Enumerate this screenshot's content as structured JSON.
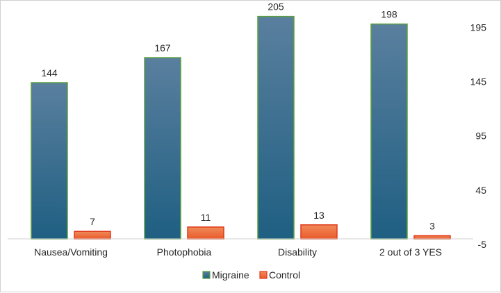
{
  "chart_data": {
    "type": "bar",
    "categories": [
      "Nausea/Vomiting",
      "Photophobia",
      "Disability",
      "2 out of 3 YES"
    ],
    "series": [
      {
        "name": "Migraine",
        "values": [
          144,
          167,
          205,
          198
        ],
        "color": "#1f5f82",
        "color_top": "#5a7f9e",
        "border": "#5aa03c"
      },
      {
        "name": "Control",
        "values": [
          7,
          11,
          13,
          3
        ],
        "color": "#ea5a2a",
        "color_top": "#f08a5a",
        "border": "#e03a1a"
      }
    ],
    "y_ticks": [
      "195",
      "145",
      "95",
      "45",
      "-5"
    ],
    "ylim": [
      -5,
      215
    ],
    "y_axis_side": "right",
    "grid": false,
    "legend_position": "bottom",
    "data_labels": true,
    "title": "",
    "xlabel": "",
    "ylabel": ""
  }
}
